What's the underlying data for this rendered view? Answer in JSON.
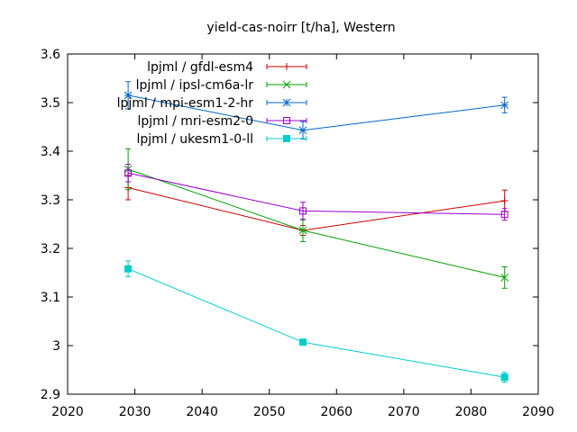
{
  "chart_data": {
    "type": "line",
    "title": "yield-cas-noirr [t/ha], Western",
    "xlabel": "",
    "ylabel": "",
    "xlim": [
      2020,
      2090
    ],
    "ylim": [
      2.9,
      3.6
    ],
    "xticks": [
      2020,
      2030,
      2040,
      2050,
      2060,
      2070,
      2080,
      2090
    ],
    "yticks": [
      2.9,
      3.0,
      3.1,
      3.2,
      3.3,
      3.4,
      3.5,
      3.6
    ],
    "xtick_labels": [
      "2020",
      "2030",
      "2040",
      "2050",
      "2060",
      "2070",
      "2080",
      "2090"
    ],
    "ytick_labels": [
      "2.9",
      "3",
      "3.1",
      "3.2",
      "3.3",
      "3.4",
      "3.5",
      "3.6"
    ],
    "grid": false,
    "legend_position": "top-left",
    "series": [
      {
        "name": "lpjml / gfdl-esm4",
        "color": "#cc0000",
        "marker": "plus",
        "x": [
          2029,
          2055,
          2085
        ],
        "y": [
          3.325,
          3.237,
          3.298
        ],
        "yerr": [
          0.025,
          0.01,
          0.022
        ]
      },
      {
        "name": "lpjml / ipsl-cm6a-lr",
        "color": "#00a000",
        "marker": "x",
        "x": [
          2029,
          2055,
          2085
        ],
        "y": [
          3.363,
          3.237,
          3.14
        ],
        "yerr": [
          0.042,
          0.023,
          0.022
        ]
      },
      {
        "name": "lpjml / mpi-esm1-2-hr",
        "color": "#0066cc",
        "marker": "star",
        "x": [
          2029,
          2055,
          2085
        ],
        "y": [
          3.515,
          3.443,
          3.495
        ],
        "yerr": [
          0.028,
          0.018,
          0.016
        ]
      },
      {
        "name": "lpjml / mri-esm2-0",
        "color": "#9900cc",
        "marker": "square-open",
        "x": [
          2029,
          2055,
          2085
        ],
        "y": [
          3.355,
          3.277,
          3.27
        ],
        "yerr": [
          0.018,
          0.018,
          0.012
        ]
      },
      {
        "name": "lpjml / ukesm1-0-ll",
        "color": "#00cccc",
        "marker": "square-filled",
        "x": [
          2029,
          2055,
          2085
        ],
        "y": [
          3.158,
          3.007,
          2.935
        ],
        "yerr": [
          0.016,
          0.006,
          0.01
        ]
      }
    ]
  }
}
